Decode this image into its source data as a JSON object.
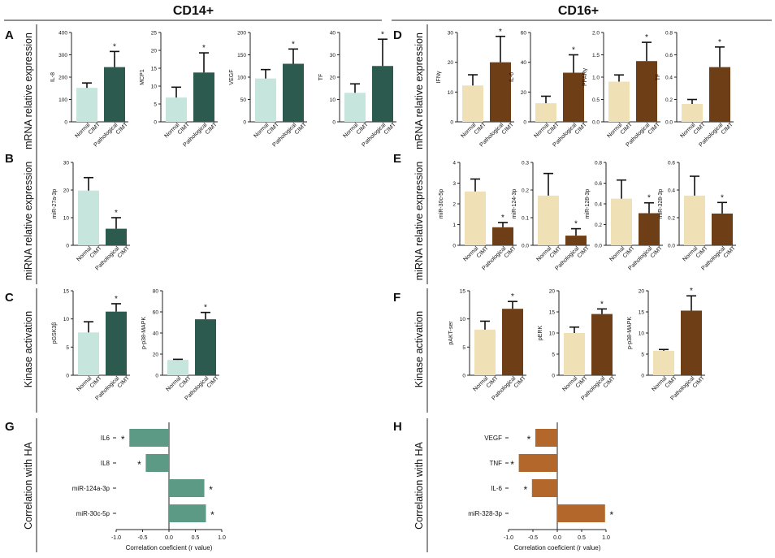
{
  "headers": {
    "left": "CD14+",
    "right": "CD16+"
  },
  "colors": {
    "cd14_normal": "#c5e5dd",
    "cd14_patho": "#2d5a4e",
    "cd16_normal": "#f0e0b5",
    "cd16_patho": "#6e3f17",
    "cd14_hbar": "#5c9a86",
    "cd16_hbar": "#b3672a",
    "error": "#111111"
  },
  "row_labels": {
    "mrna": "mRNA relative expression",
    "mirna": "miRNA relative expression",
    "kinase": "Kinase activation",
    "corr": "Correlation with HA"
  },
  "groups": [
    "Normal CIMT",
    "Pathological CIMT"
  ],
  "panel_letters": [
    "A",
    "B",
    "C",
    "D",
    "E",
    "F",
    "G",
    "H"
  ],
  "chart_data": [
    {
      "type": "bar",
      "panel": "A",
      "ylabel": "IL-8",
      "categories": [
        "Normal CIMT",
        "Pathological CIMT"
      ],
      "values": [
        152,
        245
      ],
      "errors": [
        22,
        70
      ],
      "ylim": [
        0,
        400
      ],
      "yticks": [
        "0",
        "100",
        "200",
        "300",
        "400"
      ],
      "significance": [
        "",
        "*"
      ]
    },
    {
      "type": "bar",
      "panel": "A",
      "ylabel": "MCP1",
      "categories": [
        "Normal CIMT",
        "Pathological CIMT"
      ],
      "values": [
        6.8,
        13.8
      ],
      "errors": [
        2.9,
        5.5
      ],
      "ylim": [
        0,
        25
      ],
      "yticks": [
        "0",
        "5",
        "10",
        "15",
        "20",
        "25"
      ],
      "significance": [
        "",
        "*"
      ]
    },
    {
      "type": "bar",
      "panel": "A",
      "ylabel": "VEGF",
      "categories": [
        "Normal CIMT",
        "Pathological CIMT"
      ],
      "values": [
        97,
        130
      ],
      "errors": [
        20,
        33
      ],
      "ylim": [
        0,
        200
      ],
      "yticks": [
        "0",
        "50",
        "100",
        "150",
        "200"
      ],
      "significance": [
        "",
        "*"
      ]
    },
    {
      "type": "bar",
      "panel": "A",
      "ylabel": "TF",
      "categories": [
        "Normal CIMT",
        "Pathological CIMT"
      ],
      "values": [
        13,
        25
      ],
      "errors": [
        4,
        12
      ],
      "ylim": [
        0,
        40
      ],
      "yticks": [
        "0",
        "10",
        "20",
        "30",
        "40"
      ],
      "significance": [
        "",
        "*"
      ]
    },
    {
      "type": "bar",
      "panel": "B",
      "ylabel": "miR-27a-3p",
      "categories": [
        "Normal CIMT",
        "Pathological CIMT"
      ],
      "values": [
        19.8,
        6
      ],
      "errors": [
        4.7,
        4
      ],
      "ylim": [
        0,
        30
      ],
      "yticks": [
        "0",
        "10",
        "20",
        "30"
      ],
      "significance": [
        "",
        "*"
      ]
    },
    {
      "type": "bar",
      "panel": "C",
      "ylabel": "pGSK3β",
      "categories": [
        "Normal CIMT",
        "Pathological CIMT"
      ],
      "values": [
        7.6,
        11.3
      ],
      "errors": [
        1.9,
        1.4
      ],
      "ylim": [
        0,
        15
      ],
      "yticks": [
        "0",
        "5",
        "10",
        "15"
      ],
      "significance": [
        "",
        "*"
      ]
    },
    {
      "type": "bar",
      "panel": "C",
      "ylabel": "p-p38-MAPK",
      "categories": [
        "Normal CIMT",
        "Pathological CIMT"
      ],
      "values": [
        14.5,
        53
      ],
      "errors": [
        0.6,
        6.5
      ],
      "ylim": [
        0,
        80
      ],
      "yticks": [
        "0",
        "20",
        "40",
        "60",
        "80"
      ],
      "significance": [
        "",
        "*"
      ]
    },
    {
      "type": "bar",
      "panel": "D",
      "ylabel": "IFNγ",
      "categories": [
        "Normal CIMT",
        "Pathological CIMT"
      ],
      "values": [
        12.2,
        20
      ],
      "errors": [
        3.6,
        8.7
      ],
      "ylim": [
        0,
        30
      ],
      "yticks": [
        "0",
        "10",
        "20",
        "30"
      ],
      "significance": [
        "",
        "*"
      ]
    },
    {
      "type": "bar",
      "panel": "D",
      "ylabel": "IL-6",
      "categories": [
        "Normal CIMT",
        "Pathological CIMT"
      ],
      "values": [
        12.5,
        33
      ],
      "errors": [
        4.7,
        12
      ],
      "ylim": [
        0,
        60
      ],
      "yticks": [
        "0",
        "20",
        "40",
        "60"
      ],
      "significance": [
        "",
        "*"
      ]
    },
    {
      "type": "bar",
      "panel": "D",
      "ylabel": "PPARγ",
      "categories": [
        "Normal CIMT",
        "Pathological CIMT"
      ],
      "values": [
        0.9,
        1.36
      ],
      "errors": [
        0.15,
        0.42
      ],
      "ylim": [
        0,
        2
      ],
      "yticks": [
        "0.0",
        "0.5",
        "1.0",
        "1.5",
        "2.0"
      ],
      "significance": [
        "",
        "*"
      ]
    },
    {
      "type": "bar",
      "panel": "D",
      "ylabel": "TF",
      "categories": [
        "Normal CIMT",
        "Pathological CIMT"
      ],
      "values": [
        0.16,
        0.49
      ],
      "errors": [
        0.04,
        0.18
      ],
      "ylim": [
        0,
        0.8
      ],
      "yticks": [
        "0.0",
        "0.2",
        "0.4",
        "0.6",
        "0.8"
      ],
      "significance": [
        "",
        "*"
      ]
    },
    {
      "type": "bar",
      "panel": "E",
      "ylabel": "miR-30c-5p",
      "categories": [
        "Normal CIMT",
        "Pathological CIMT"
      ],
      "values": [
        2.6,
        0.87
      ],
      "errors": [
        0.6,
        0.23
      ],
      "ylim": [
        0,
        4
      ],
      "yticks": [
        "0",
        "1",
        "2",
        "3",
        "4"
      ],
      "significance": [
        "",
        "*"
      ]
    },
    {
      "type": "bar",
      "panel": "E",
      "ylabel": "miR-124-3p",
      "categories": [
        "Normal CIMT",
        "Pathological CIMT"
      ],
      "values": [
        0.18,
        0.035
      ],
      "errors": [
        0.08,
        0.025
      ],
      "ylim": [
        0,
        0.3
      ],
      "yticks": [
        "0.0",
        "0.1",
        "0.2",
        "0.3"
      ],
      "significance": [
        "",
        "*"
      ]
    },
    {
      "type": "bar",
      "panel": "E",
      "ylabel": "miR-128-3p",
      "categories": [
        "Normal CIMT",
        "Pathological CIMT"
      ],
      "values": [
        0.45,
        0.31
      ],
      "errors": [
        0.18,
        0.1
      ],
      "ylim": [
        0,
        0.8
      ],
      "yticks": [
        "0.0",
        "0.2",
        "0.4",
        "0.6",
        "0.8"
      ],
      "significance": [
        "",
        "*"
      ]
    },
    {
      "type": "bar",
      "panel": "E",
      "ylabel": "miR-328-3p",
      "categories": [
        "Normal CIMT",
        "Pathological CIMT"
      ],
      "values": [
        0.36,
        0.23
      ],
      "errors": [
        0.14,
        0.08
      ],
      "ylim": [
        0,
        0.6
      ],
      "yticks": [
        "0.0",
        "0.2",
        "0.4",
        "0.6"
      ],
      "significance": [
        "",
        "*"
      ]
    },
    {
      "type": "bar",
      "panel": "F",
      "ylabel": "pAKT-ser",
      "categories": [
        "Normal CIMT",
        "Pathological CIMT"
      ],
      "values": [
        8.1,
        11.8
      ],
      "errors": [
        1.5,
        1.3
      ],
      "ylim": [
        0,
        15
      ],
      "yticks": [
        "0",
        "5",
        "10",
        "15"
      ],
      "significance": [
        "",
        "*"
      ]
    },
    {
      "type": "bar",
      "panel": "F",
      "ylabel": "pERK",
      "categories": [
        "Normal CIMT",
        "Pathological CIMT"
      ],
      "values": [
        10,
        14.5
      ],
      "errors": [
        1.4,
        1.2
      ],
      "ylim": [
        0,
        20
      ],
      "yticks": [
        "0",
        "5",
        "10",
        "15",
        "20"
      ],
      "significance": [
        "",
        "*"
      ]
    },
    {
      "type": "bar",
      "panel": "F",
      "ylabel": "p-p38-MAPK",
      "categories": [
        "Normal CIMT",
        "Pathological CIMT"
      ],
      "values": [
        5.8,
        15.3
      ],
      "errors": [
        0.3,
        3.5
      ],
      "ylim": [
        0,
        20
      ],
      "yticks": [
        "0",
        "5",
        "10",
        "15",
        "20"
      ],
      "significance": [
        "",
        "*"
      ]
    },
    {
      "type": "bar",
      "orientation": "horizontal",
      "panel": "G",
      "xlabel": "Correlation coeficient (r value)",
      "categories": [
        "IL6",
        "IL8",
        "miR-124a-3p",
        "miR-30c-5p"
      ],
      "values": [
        -0.75,
        -0.44,
        0.67,
        0.7
      ],
      "significance": [
        "*",
        "*",
        "*",
        "*"
      ],
      "xlim": [
        -1,
        1
      ],
      "xticks": [
        "-1.0",
        "-0.5",
        "0.0",
        "0.5",
        "1.0"
      ]
    },
    {
      "type": "bar",
      "orientation": "horizontal",
      "panel": "H",
      "xlabel": "Correlation coeficient (r value)",
      "categories": [
        "VEGF",
        "TNF",
        "IL-6",
        "miR-328-3p"
      ],
      "values": [
        -0.45,
        -0.79,
        -0.52,
        0.98
      ],
      "significance": [
        "*",
        "*",
        "*",
        "*"
      ],
      "xlim": [
        -1,
        1
      ],
      "xticks": [
        "-1.0",
        "-0.5",
        "0.0",
        "0.5",
        "1.0"
      ]
    }
  ]
}
